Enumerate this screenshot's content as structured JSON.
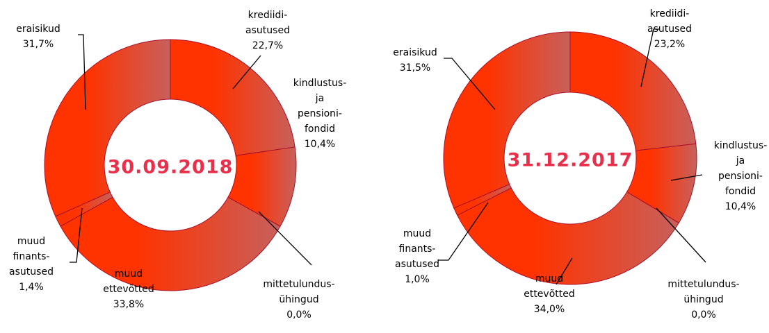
{
  "chart_data": [
    {
      "type": "donut",
      "title": "30.09.2018",
      "categories": [
        [
          "krediidi-",
          "asutused"
        ],
        [
          "kindlustus-",
          "ja",
          "pensioni-",
          "fondid"
        ],
        [
          "mittetulundus-",
          "ühingud"
        ],
        [
          "muud",
          "ettevõtted"
        ],
        [
          "muud",
          "finants-",
          "asutused"
        ],
        [
          "eraisikud"
        ]
      ],
      "values": [
        22.7,
        10.4,
        0.0,
        33.8,
        1.4,
        31.7
      ],
      "value_labels": [
        "22,7%",
        "10,4%",
        "0,0%",
        "33,8%",
        "1,4%",
        "31,7%"
      ],
      "colors": [
        "#ff3300",
        "#c8605c"
      ],
      "title_color": "#e8304a"
    },
    {
      "type": "donut",
      "title": "31.12.2017",
      "categories": [
        [
          "krediidi-",
          "asutused"
        ],
        [
          "kindlustus-",
          "ja",
          "pensioni-",
          "fondid"
        ],
        [
          "mittetulundus-",
          "ühingud"
        ],
        [
          "muud",
          "ettevõtted"
        ],
        [
          "muud",
          "finants-",
          "asutused"
        ],
        [
          "eraisikud"
        ]
      ],
      "values": [
        23.2,
        10.4,
        0.0,
        34.0,
        1.0,
        31.5
      ],
      "value_labels": [
        "23,2%",
        "10,4%",
        "0,0%",
        "34,0%",
        "1,0%",
        "31,5%"
      ],
      "colors": [
        "#ff3300",
        "#c8605c"
      ],
      "title_color": "#e8304a"
    }
  ]
}
